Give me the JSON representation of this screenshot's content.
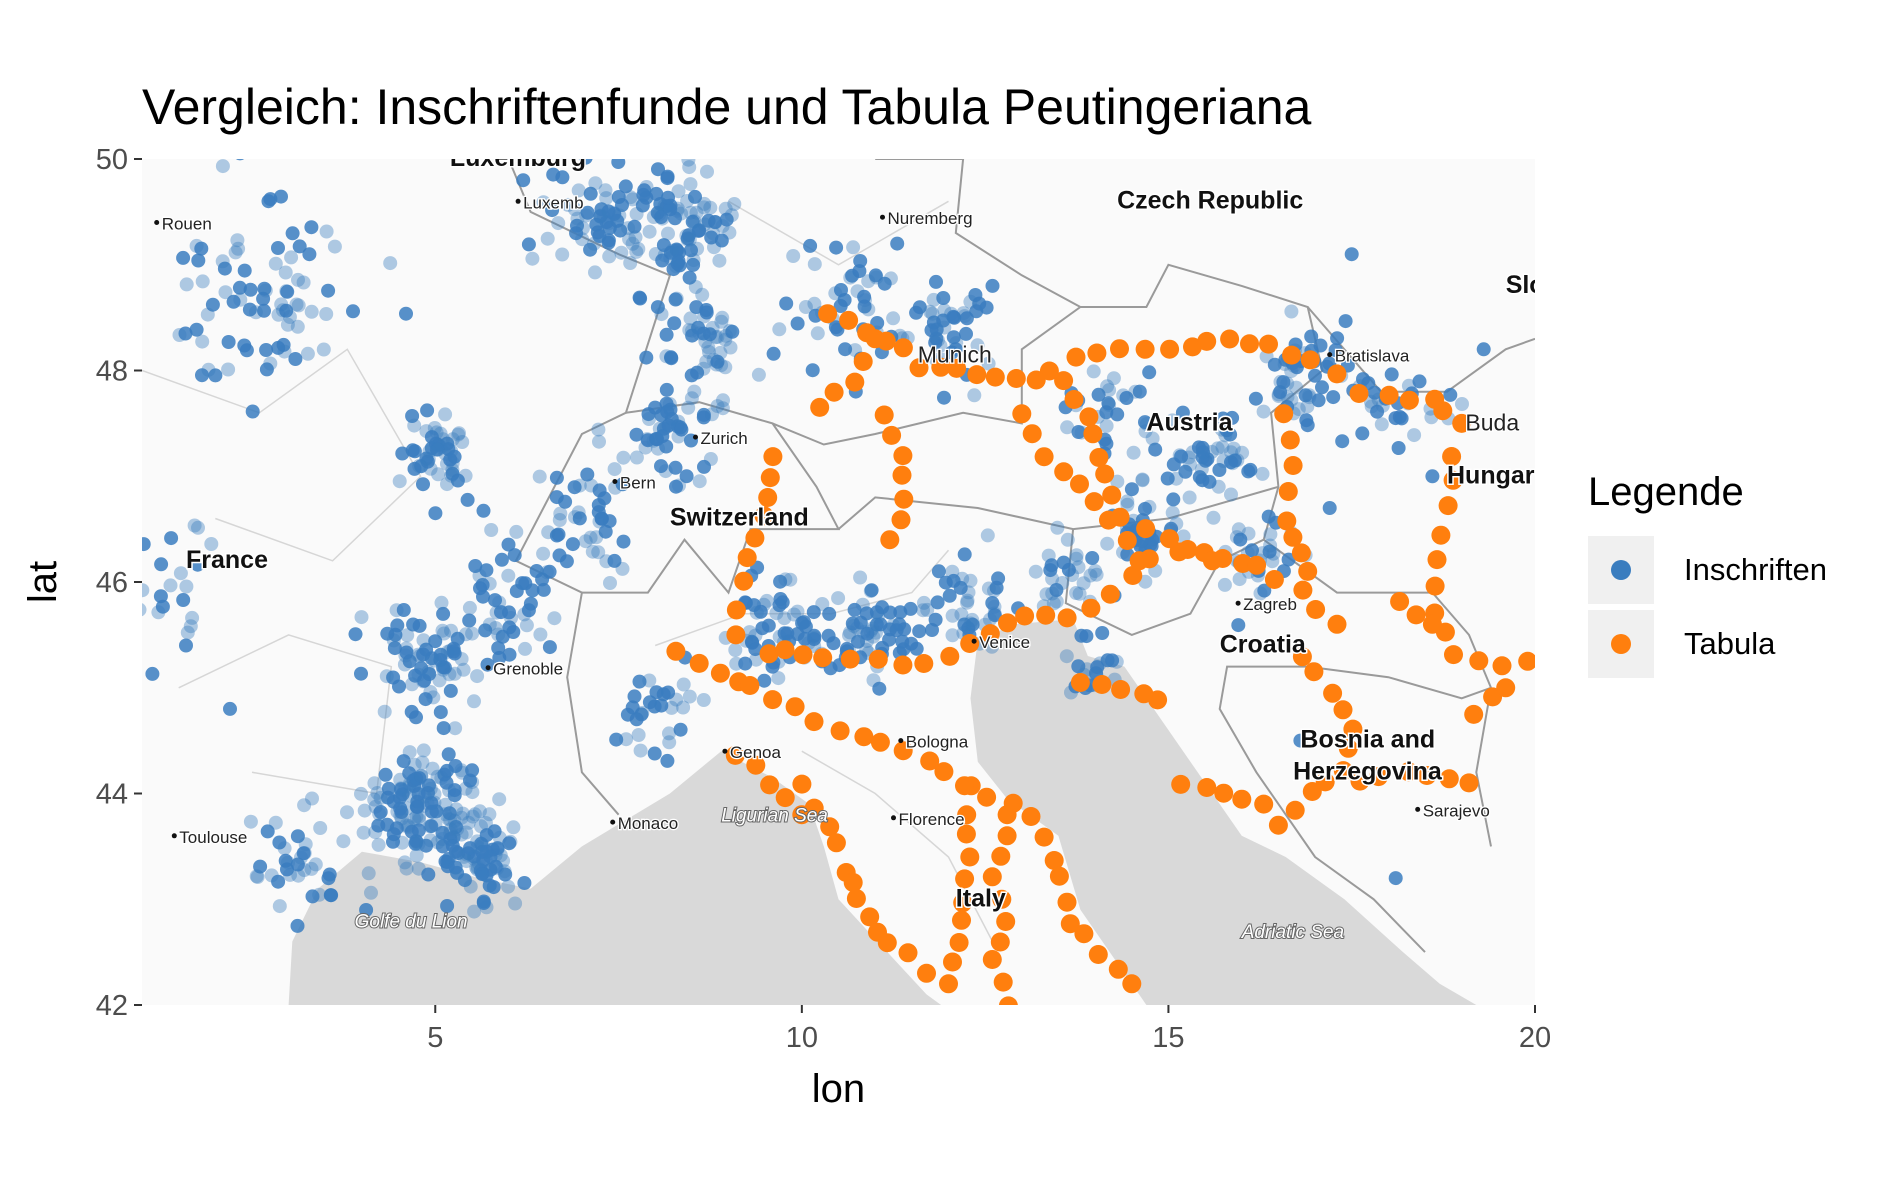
{
  "title": "Vergleich: Inschriftenfunde und Tabula Peutingeriana",
  "colors": {
    "inschriften": "#3a7dbf",
    "tabula": "#ff7f0e",
    "sea": "#d9d9d9",
    "land": "#fafafa"
  },
  "chart_data": {
    "type": "scatter",
    "title": "Vergleich: Inschriftenfunde und Tabula Peutingeriana",
    "xlabel": "lon",
    "ylabel": "lat",
    "xlim": [
      1.0,
      20.0
    ],
    "ylim": [
      42.0,
      50.0
    ],
    "x_ticks": [
      "5",
      "10",
      "15",
      "20"
    ],
    "y_ticks": [
      "42",
      "44",
      "46",
      "48",
      "50"
    ],
    "legend": {
      "title": "Legende",
      "position": "right",
      "entries": [
        "Inschriften",
        "Tabula"
      ]
    },
    "series": [
      {
        "name": "Inschriften",
        "color": "#3a7dbf",
        "clusters": [
          {
            "lon": 4.9,
            "lat": 43.9,
            "spread": 0.6,
            "n": 140
          },
          {
            "lon": 5.6,
            "lat": 43.4,
            "spread": 0.4,
            "n": 60
          },
          {
            "lon": 3.2,
            "lat": 43.3,
            "spread": 0.5,
            "n": 40
          },
          {
            "lon": 5.0,
            "lat": 45.3,
            "spread": 0.5,
            "n": 70
          },
          {
            "lon": 6.0,
            "lat": 45.8,
            "spread": 0.5,
            "n": 50
          },
          {
            "lon": 5.0,
            "lat": 47.2,
            "spread": 0.4,
            "n": 50
          },
          {
            "lon": 2.6,
            "lat": 48.7,
            "spread": 0.9,
            "n": 80
          },
          {
            "lon": 7.4,
            "lat": 49.4,
            "spread": 0.6,
            "n": 80
          },
          {
            "lon": 8.4,
            "lat": 49.4,
            "spread": 0.5,
            "n": 70
          },
          {
            "lon": 8.6,
            "lat": 48.3,
            "spread": 0.5,
            "n": 50
          },
          {
            "lon": 10.7,
            "lat": 48.6,
            "spread": 0.7,
            "n": 50
          },
          {
            "lon": 12.0,
            "lat": 48.4,
            "spread": 0.5,
            "n": 40
          },
          {
            "lon": 8.2,
            "lat": 47.4,
            "spread": 0.5,
            "n": 50
          },
          {
            "lon": 7.0,
            "lat": 46.6,
            "spread": 0.5,
            "n": 40
          },
          {
            "lon": 9.7,
            "lat": 45.6,
            "spread": 0.5,
            "n": 60
          },
          {
            "lon": 11.0,
            "lat": 45.5,
            "spread": 0.5,
            "n": 60
          },
          {
            "lon": 12.3,
            "lat": 45.8,
            "spread": 0.4,
            "n": 40
          },
          {
            "lon": 13.6,
            "lat": 46.1,
            "spread": 0.4,
            "n": 30
          },
          {
            "lon": 14.6,
            "lat": 46.5,
            "spread": 0.4,
            "n": 40
          },
          {
            "lon": 15.6,
            "lat": 47.1,
            "spread": 0.5,
            "n": 50
          },
          {
            "lon": 16.8,
            "lat": 47.9,
            "spread": 0.5,
            "n": 50
          },
          {
            "lon": 18.2,
            "lat": 47.7,
            "spread": 0.4,
            "n": 30
          },
          {
            "lon": 16.2,
            "lat": 46.2,
            "spread": 0.4,
            "n": 30
          },
          {
            "lon": 14.2,
            "lat": 47.6,
            "spread": 0.5,
            "n": 30
          },
          {
            "lon": 1.4,
            "lat": 46.0,
            "spread": 0.6,
            "n": 20
          },
          {
            "lon": 8.0,
            "lat": 44.8,
            "spread": 0.4,
            "n": 30
          },
          {
            "lon": 13.9,
            "lat": 45.2,
            "spread": 0.3,
            "n": 20
          }
        ],
        "scatter_points": [
          {
            "lon": 17.5,
            "lat": 49.1
          },
          {
            "lon": 19.3,
            "lat": 48.2
          },
          {
            "lon": 18.3,
            "lat": 44.2
          },
          {
            "lon": 18.1,
            "lat": 43.2
          },
          {
            "lon": 16.8,
            "lat": 44.5
          },
          {
            "lon": 17.2,
            "lat": 46.7
          },
          {
            "lon": 18.6,
            "lat": 47.0
          },
          {
            "lon": 1.6,
            "lat": 45.4
          },
          {
            "lon": 2.2,
            "lat": 44.8
          },
          {
            "lon": 6.2,
            "lat": 49.8
          },
          {
            "lon": 11.3,
            "lat": 49.2
          },
          {
            "lon": 12.6,
            "lat": 48.8
          }
        ]
      },
      {
        "name": "Tabula",
        "color": "#ff7f0e",
        "routes": [
          [
            [
              10.4,
              48.55
            ],
            [
              10.9,
              48.4
            ],
            [
              11.6,
              48.05
            ],
            [
              12.4,
              47.95
            ],
            [
              13.2,
              47.9
            ],
            [
              14.0,
              48.2
            ],
            [
              15.0,
              48.2
            ],
            [
              15.8,
              48.3
            ],
            [
              16.4,
              48.2
            ],
            [
              17.0,
              48.1
            ],
            [
              17.6,
              47.8
            ],
            [
              18.6,
              47.75
            ],
            [
              19.0,
              47.5
            ]
          ],
          [
            [
              10.2,
              47.7
            ],
            [
              10.7,
              47.9
            ],
            [
              11.0,
              48.3
            ]
          ],
          [
            [
              11.1,
              47.6
            ],
            [
              11.35,
              47.2
            ],
            [
              11.4,
              46.8
            ],
            [
              11.2,
              46.4
            ]
          ],
          [
            [
              9.6,
              47.2
            ],
            [
              9.55,
              46.8
            ],
            [
              9.4,
              46.4
            ],
            [
              9.2,
              46.0
            ],
            [
              9.1,
              45.5
            ]
          ],
          [
            [
              8.3,
              45.35
            ],
            [
              8.9,
              45.15
            ],
            [
              9.3,
              45.0
            ],
            [
              9.9,
              44.8
            ],
            [
              10.5,
              44.6
            ],
            [
              11.1,
              44.45
            ],
            [
              11.7,
              44.3
            ],
            [
              12.3,
              44.1
            ],
            [
              12.8,
              43.8
            ]
          ],
          [
            [
              9.5,
              45.35
            ],
            [
              10.3,
              45.3
            ],
            [
              11.0,
              45.25
            ],
            [
              11.7,
              45.2
            ],
            [
              12.3,
              45.45
            ],
            [
              13.0,
              45.7
            ],
            [
              13.6,
              45.65
            ],
            [
              14.2,
              45.9
            ],
            [
              14.8,
              46.2
            ],
            [
              15.5,
              46.3
            ],
            [
              16.2,
              46.1
            ],
            [
              16.8,
              45.9
            ],
            [
              17.3,
              45.6
            ]
          ],
          [
            [
              12.2,
              44.05
            ],
            [
              12.3,
              43.4
            ],
            [
              12.2,
              42.8
            ],
            [
              12.0,
              42.2
            ]
          ],
          [
            [
              12.9,
              43.9
            ],
            [
              13.3,
              43.6
            ],
            [
              13.5,
              43.2
            ],
            [
              13.7,
              42.8
            ],
            [
              14.0,
              42.5
            ],
            [
              14.5,
              42.2
            ]
          ],
          [
            [
              10.0,
              44.1
            ],
            [
              10.4,
              43.7
            ],
            [
              10.6,
              43.3
            ],
            [
              10.8,
              43.0
            ],
            [
              11.0,
              42.7
            ],
            [
              11.4,
              42.5
            ],
            [
              11.7,
              42.3
            ]
          ],
          [
            [
              12.8,
              42.0
            ],
            [
              12.6,
              42.4
            ],
            [
              12.8,
              42.8
            ],
            [
              12.6,
              43.2
            ],
            [
              12.8,
              43.6
            ]
          ],
          [
            [
              13.0,
              47.6
            ],
            [
              13.3,
              47.2
            ],
            [
              13.8,
              46.9
            ],
            [
              14.2,
              46.6
            ],
            [
              14.6,
              46.2
            ]
          ],
          [
            [
              13.6,
              47.9
            ],
            [
              14.0,
              47.4
            ],
            [
              14.1,
              47.0
            ],
            [
              14.4,
              46.6
            ],
            [
              15.0,
              46.4
            ],
            [
              15.6,
              46.2
            ]
          ],
          [
            [
              16.6,
              47.6
            ],
            [
              16.7,
              47.1
            ],
            [
              16.6,
              46.6
            ],
            [
              16.9,
              46.1
            ]
          ],
          [
            [
              18.9,
              47.2
            ],
            [
              18.8,
              46.7
            ],
            [
              18.7,
              46.2
            ],
            [
              18.6,
              45.7
            ],
            [
              18.9,
              45.3
            ],
            [
              19.5,
              45.2
            ],
            [
              19.9,
              45.25
            ]
          ],
          [
            [
              18.1,
              45.8
            ],
            [
              18.6,
              45.6
            ]
          ],
          [
            [
              16.8,
              45.3
            ],
            [
              17.2,
              45.0
            ],
            [
              17.5,
              44.6
            ],
            [
              17.4,
              44.2
            ],
            [
              17.0,
              44.0
            ],
            [
              16.5,
              43.7
            ]
          ],
          [
            [
              15.2,
              44.1
            ],
            [
              15.8,
              44.0
            ],
            [
              16.3,
              43.9
            ]
          ],
          [
            [
              14.9,
              44.9
            ],
            [
              14.4,
              45.0
            ],
            [
              13.8,
              45.05
            ]
          ],
          [
            [
              9.1,
              44.4
            ],
            [
              9.6,
              44.1
            ],
            [
              10.0,
              43.8
            ]
          ],
          [
            [
              17.6,
              44.1
            ],
            [
              18.2,
              44.2
            ],
            [
              19.1,
              44.1
            ]
          ],
          [
            [
              19.2,
              44.8
            ],
            [
              19.6,
              45.0
            ]
          ]
        ]
      }
    ]
  },
  "map": {
    "countries": [
      {
        "label": "Czech Republic",
        "lon": 14.3,
        "lat": 49.6
      },
      {
        "label": "Switzerland",
        "lon": 8.2,
        "lat": 46.6
      },
      {
        "label": "France",
        "lon": 1.6,
        "lat": 46.2
      },
      {
        "label": "Austria",
        "lon": 14.7,
        "lat": 47.5
      },
      {
        "label": "Croatia",
        "lon": 15.7,
        "lat": 45.4
      },
      {
        "label": "Bosnia and",
        "lon": 16.8,
        "lat": 44.5
      },
      {
        "label": "Herzegovina",
        "lon": 16.7,
        "lat": 44.2
      },
      {
        "label": "Italy",
        "lon": 12.1,
        "lat": 43.0
      },
      {
        "label": "Hungar",
        "lon": 18.8,
        "lat": 47.0
      },
      {
        "label": "Slo",
        "lon": 19.6,
        "lat": 48.8
      },
      {
        "label": "Luxemburg",
        "lon": 5.2,
        "lat": 50.0
      }
    ],
    "cities_small": [
      {
        "label": "Rouen",
        "lon": 1.2,
        "lat": 49.4
      },
      {
        "label": "Nuremberg",
        "lon": 11.1,
        "lat": 49.45
      },
      {
        "label": "Bratislava",
        "lon": 17.2,
        "lat": 48.15
      },
      {
        "label": "Bern",
        "lon": 7.45,
        "lat": 46.95
      },
      {
        "label": "Zurich",
        "lon": 8.55,
        "lat": 47.37
      },
      {
        "label": "Zagreb",
        "lon": 15.95,
        "lat": 45.8
      },
      {
        "label": "Venice",
        "lon": 12.35,
        "lat": 45.44
      },
      {
        "label": "Bologna",
        "lon": 11.35,
        "lat": 44.5
      },
      {
        "label": "Genoa",
        "lon": 8.95,
        "lat": 44.4
      },
      {
        "label": "Florence",
        "lon": 11.25,
        "lat": 43.77
      },
      {
        "label": "Monaco",
        "lon": 7.42,
        "lat": 43.73
      },
      {
        "label": "Toulouse",
        "lon": 1.44,
        "lat": 43.6
      },
      {
        "label": "Grenoble",
        "lon": 5.72,
        "lat": 45.19
      },
      {
        "label": "Sarajevo",
        "lon": 18.4,
        "lat": 43.85
      },
      {
        "label": "Luxemb",
        "lon": 6.13,
        "lat": 49.6
      }
    ],
    "cities_large": [
      {
        "label": "Munich",
        "lon": 11.58,
        "lat": 48.14
      },
      {
        "label": "Buda",
        "lon": 19.05,
        "lat": 47.5
      }
    ],
    "seas": [
      {
        "label": "Ligurian Sea",
        "lon": 8.9,
        "lat": 43.8
      },
      {
        "label": "Golfe du Lion",
        "lon": 3.9,
        "lat": 42.8
      },
      {
        "label": "Adriatic Sea",
        "lon": 16.0,
        "lat": 42.7
      }
    ]
  }
}
